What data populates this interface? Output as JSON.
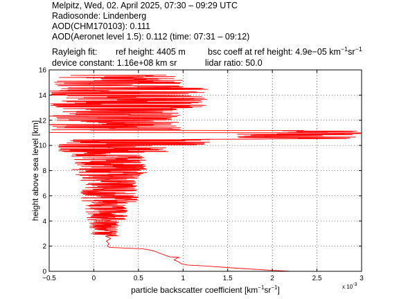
{
  "header": {
    "line1": "Melpitz, Wed, 02. April 2025, 07:30 – 09:29 UTC",
    "line2": "Radiosonde: Lindenberg",
    "line3": "AOD(CHM170103): 0.111",
    "line4": "AOD(Aeronet level 1.5): 0.112   (time: 07:31 – 09:12)",
    "rayleigh_label": "Rayleigh fit:",
    "ref_height": "ref height: 4405 m",
    "bsc_coeff_prefix": "bsc coeff at ref height: 4.9e−05 km",
    "bsc_sup1": "−1",
    "bsc_mid": "sr",
    "bsc_sup2": "−1",
    "device_constant": "device constant: 1.16e+08 km sr",
    "lidar_ratio": "lidar ratio: 50.0"
  },
  "chart_data": {
    "type": "line",
    "ylabel": "height above sea level [km]",
    "xlabel_prefix": "particle backscatter coefficient [km",
    "xlabel_sup1": "−1",
    "xlabel_mid": "sr",
    "xlabel_sup2": "−1",
    "xlabel_suffix": "]",
    "x_multiplier_base": "x 10",
    "x_multiplier_exp": "-3",
    "xlim": [
      -0.5,
      3
    ],
    "ylim": [
      0,
      16
    ],
    "x_ticks": [
      -0.5,
      0,
      0.5,
      1,
      1.5,
      2,
      2.5,
      3
    ],
    "x_tick_labels": [
      "−0.5",
      "0",
      "0.5",
      "1",
      "1.5",
      "2",
      "2.5",
      "3"
    ],
    "y_ticks": [
      0,
      2,
      4,
      6,
      8,
      10,
      12,
      14,
      16
    ],
    "y_tick_labels": [
      "0",
      "2",
      "4",
      "6",
      "8",
      "10",
      "12",
      "14",
      "16"
    ],
    "grid": true,
    "series_color": "#ff0000",
    "profile": {
      "lower_x": [
        2.2,
        1.95,
        1.6,
        1.3,
        1.05,
        0.98,
        0.95,
        0.9,
        0.93,
        0.96,
        0.92,
        0.85,
        0.75,
        0.68,
        0.62,
        0.55,
        0.45,
        0.35,
        0.25,
        0.18,
        0.15,
        0.17,
        0.14,
        0.19,
        0.13
      ],
      "lower_y": [
        0.0,
        0.1,
        0.25,
        0.4,
        0.5,
        0.6,
        0.75,
        0.9,
        1.05,
        1.1,
        1.0,
        1.15,
        1.4,
        1.6,
        1.7,
        1.78,
        1.82,
        1.85,
        1.88,
        1.9,
        2.0,
        2.2,
        2.4,
        2.6,
        2.8
      ],
      "noisy_bands": [
        {
          "y_start": 2.8,
          "y_end": 4.0,
          "lo": -0.05,
          "hi": 0.28
        },
        {
          "y_start": 4.0,
          "y_end": 5.5,
          "lo": -0.1,
          "hi": 0.38
        },
        {
          "y_start": 5.5,
          "y_end": 7.5,
          "lo": -0.15,
          "hi": 0.5
        },
        {
          "y_start": 7.5,
          "y_end": 9.5,
          "lo": -0.25,
          "hi": 0.6
        },
        {
          "y_start": 9.5,
          "y_end": 10.0,
          "lo": -0.4,
          "hi": 0.9
        },
        {
          "y_start": 10.0,
          "y_end": 10.5,
          "lo": -0.45,
          "hi": 1.35
        },
        {
          "y_start": 10.5,
          "y_end": 11.2,
          "lo": 1.6,
          "hi": 3.0
        },
        {
          "y_start": 11.2,
          "y_end": 13.0,
          "lo": -0.5,
          "hi": 1.0
        },
        {
          "y_start": 13.0,
          "y_end": 14.6,
          "lo": -0.5,
          "hi": 1.3
        },
        {
          "y_start": 14.6,
          "y_end": 15.6,
          "lo": -0.5,
          "hi": 1.0
        }
      ],
      "peak_x": 3.0,
      "peak_y": 11.0
    }
  }
}
